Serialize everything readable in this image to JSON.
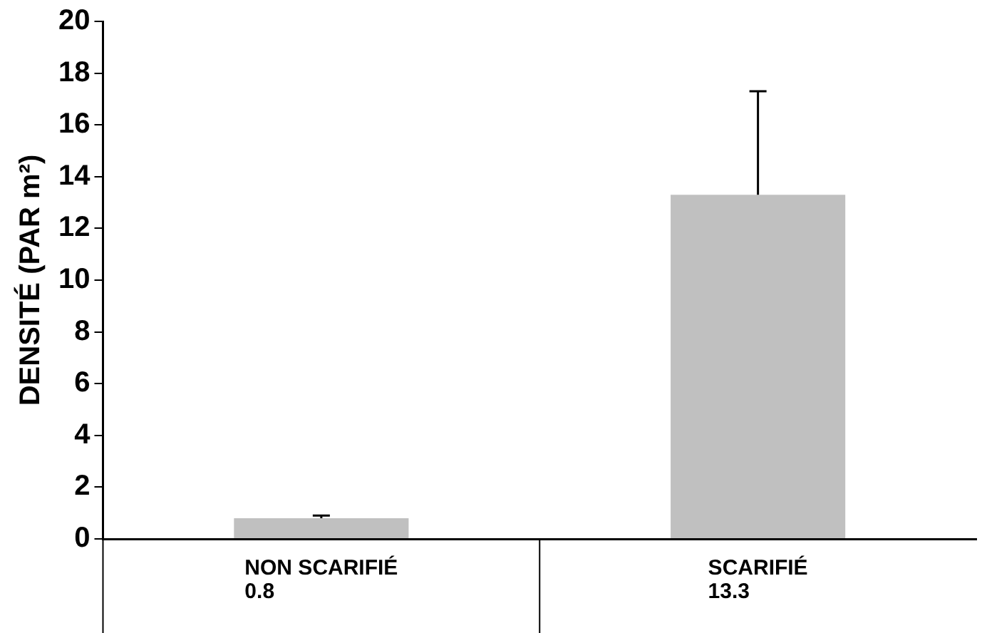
{
  "chart_data": {
    "type": "bar",
    "ylabel": "DENSITÉ (PAR m²)",
    "categories": [
      "NON SCARIFIÉ",
      "SCARIFIÉ"
    ],
    "values": [
      0.8,
      13.3
    ],
    "errors": [
      [
        0.8,
        0.9
      ],
      [
        13.3,
        17.3
      ]
    ],
    "color": "#c0c0c0",
    "ylim": [
      0,
      20
    ],
    "yticks": [
      0,
      2,
      4,
      6,
      8,
      10,
      12,
      14,
      16,
      18,
      20
    ],
    "data_labels": true,
    "grid": false,
    "legend": false
  }
}
